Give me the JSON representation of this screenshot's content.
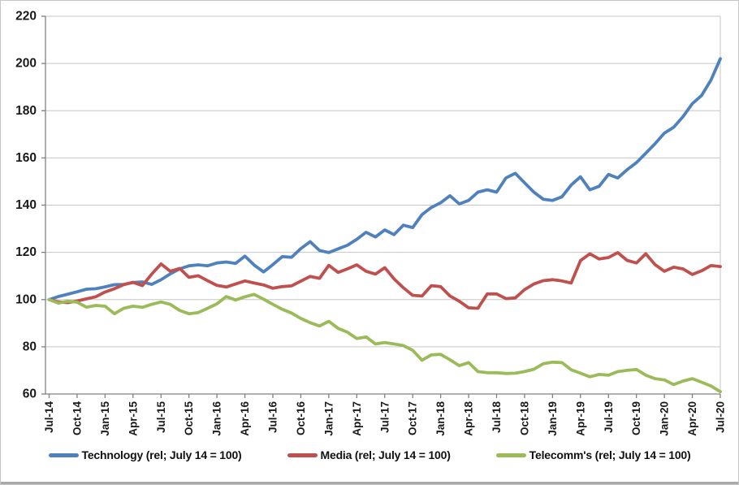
{
  "chart_data": {
    "type": "line",
    "title": "",
    "xlabel": "",
    "ylabel": "",
    "x_unit": "monthly (Jul-2014 to Jul-2020, 73 points)",
    "x_tick_labels": [
      "Jul-14",
      "Oct-14",
      "Jan-15",
      "Apr-15",
      "Jul-15",
      "Oct-15",
      "Jan-16",
      "Apr-16",
      "Jul-16",
      "Oct-16",
      "Jan-17",
      "Apr-17",
      "Jul-17",
      "Oct-17",
      "Jan-18",
      "Apr-18",
      "Jul-18",
      "Oct-18",
      "Jan-19",
      "Apr-19",
      "Jul-19",
      "Oct-19",
      "Jan-20",
      "Apr-20",
      "Jul-20"
    ],
    "ylim": [
      60,
      220
    ],
    "y_ticks": [
      220,
      200,
      180,
      160,
      140,
      120,
      100,
      80,
      60
    ],
    "grid": "horizontal",
    "legend_position": "bottom",
    "axis_color": "#808080",
    "gridline_color": "#c6c6c6",
    "series": [
      {
        "name": "Technology (rel; July 14 = 100)",
        "color": "#4F81BD",
        "values": [
          100,
          101.3,
          102.3,
          103.3,
          104.4,
          104.6,
          105.4,
          106.3,
          106.4,
          107.2,
          107.5,
          106.4,
          108.4,
          110.9,
          113.0,
          114.3,
          114.7,
          114.3,
          115.5,
          115.9,
          115.3,
          118.4,
          114.6,
          111.7,
          114.8,
          118.2,
          117.9,
          121.6,
          124.5,
          120.8,
          119.9,
          121.5,
          123.0,
          125.5,
          128.5,
          126.5,
          129.5,
          127.5,
          131.5,
          130.5,
          136.0,
          139.0,
          141.0,
          144.0,
          140.5,
          142.0,
          145.5,
          146.5,
          145.5,
          151.5,
          153.5,
          149.5,
          145.5,
          142.5,
          142.0,
          143.5,
          148.5,
          152.0,
          146.5,
          148.0,
          153.0,
          151.5,
          155.0,
          158.0,
          162.0,
          166.0,
          170.5,
          173.0,
          177.5,
          183.0,
          186.5,
          193.0,
          202.0
        ]
      },
      {
        "name": "Media (rel; July 14 = 100)",
        "color": "#C0504D",
        "values": [
          100,
          99.0,
          98.7,
          99.4,
          100.3,
          101.2,
          103.2,
          104.6,
          106.3,
          107.3,
          105.9,
          110.8,
          115.1,
          112.0,
          113.2,
          109.4,
          110.1,
          108.0,
          106.0,
          105.3,
          106.6,
          107.9,
          107.0,
          106.2,
          104.8,
          105.5,
          105.8,
          107.8,
          109.8,
          109.0,
          114.5,
          111.5,
          113.0,
          114.7,
          112.0,
          110.8,
          113.5,
          108.8,
          105.0,
          101.8,
          101.5,
          105.9,
          105.5,
          101.5,
          99.3,
          96.5,
          96.3,
          102.4,
          102.4,
          100.4,
          100.7,
          104.2,
          106.6,
          108.0,
          108.4,
          107.9,
          107.0,
          116.5,
          119.4,
          117.2,
          117.8,
          119.9,
          116.6,
          115.5,
          119.4,
          114.8,
          112.0,
          113.7,
          113.0,
          110.6,
          112.2,
          114.4,
          114.0
        ]
      },
      {
        "name": "Telecomm's (rel; July 14 = 100)",
        "color": "#9BBB59",
        "values": [
          100,
          98.5,
          99.3,
          98.9,
          96.8,
          97.5,
          97.2,
          94.0,
          96.3,
          97.2,
          96.7,
          98.0,
          99.0,
          98.0,
          95.4,
          94.0,
          94.5,
          96.3,
          98.2,
          101.3,
          99.8,
          101.2,
          102.2,
          100.2,
          98.0,
          95.9,
          94.3,
          92.0,
          90.2,
          88.8,
          90.8,
          87.8,
          86.2,
          83.5,
          84.2,
          81.2,
          81.8,
          81.2,
          80.5,
          78.5,
          74.3,
          76.6,
          76.8,
          74.5,
          72.0,
          73.3,
          69.5,
          69.0,
          69.0,
          68.7,
          68.8,
          69.5,
          70.5,
          72.8,
          73.5,
          73.3,
          70.3,
          68.8,
          67.3,
          68.3,
          68.0,
          69.5,
          70.0,
          70.4,
          68.0,
          66.5,
          66.0,
          64.0,
          65.5,
          66.5,
          65.0,
          63.4,
          61.0
        ]
      }
    ]
  }
}
